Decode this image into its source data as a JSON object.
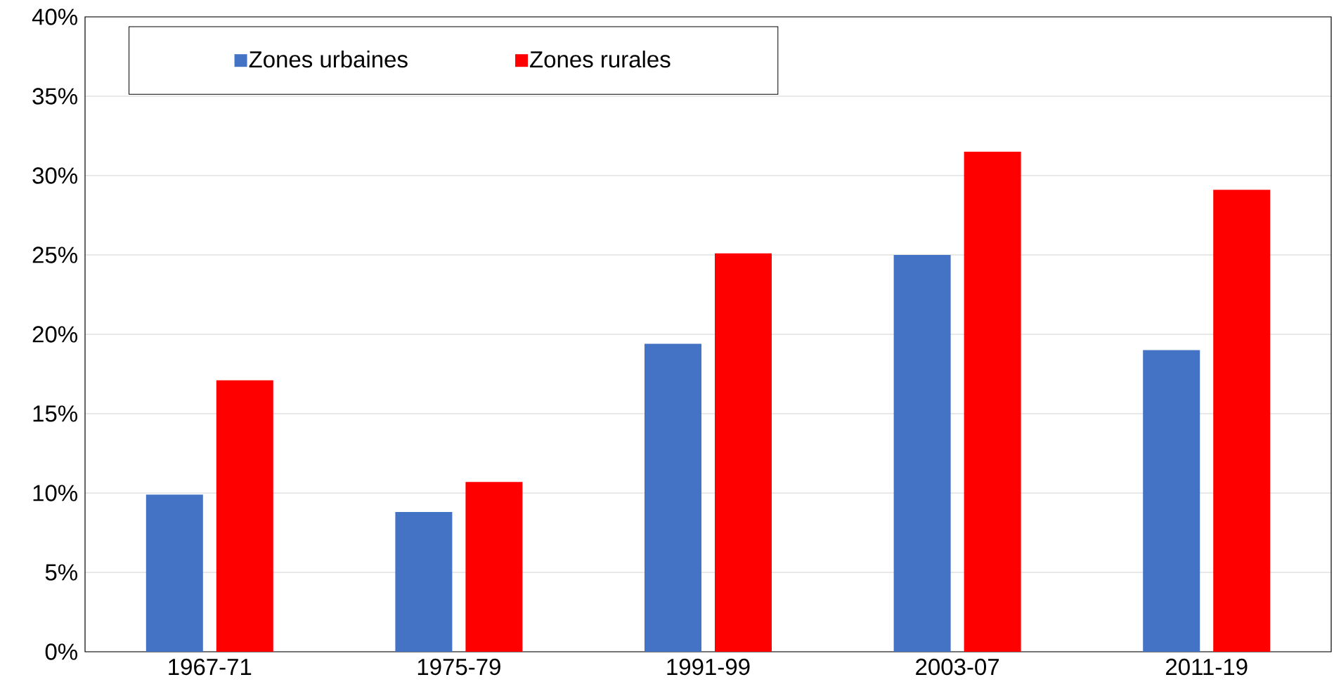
{
  "chart_data": {
    "type": "bar",
    "categories": [
      "1967-71",
      "1975-79",
      "1991-99",
      "2003-07",
      "2011-19"
    ],
    "series": [
      {
        "name": "Zones urbaines",
        "color": "#4472c4",
        "values": [
          9.9,
          8.8,
          19.4,
          25.0,
          19.0
        ]
      },
      {
        "name": "Zones rurales",
        "color": "#ff0000",
        "values": [
          17.1,
          10.7,
          25.1,
          31.5,
          29.1
        ]
      }
    ],
    "ylim": [
      0,
      40
    ],
    "yticks": [
      {
        "value": 0,
        "label": "0%"
      },
      {
        "value": 5,
        "label": "5%"
      },
      {
        "value": 10,
        "label": "10%"
      },
      {
        "value": 15,
        "label": "15%"
      },
      {
        "value": 20,
        "label": "20%"
      },
      {
        "value": 25,
        "label": "25%"
      },
      {
        "value": 30,
        "label": "30%"
      },
      {
        "value": 35,
        "label": "35%"
      },
      {
        "value": 40,
        "label": "40%"
      }
    ],
    "grid": "y",
    "legend": "top left"
  }
}
